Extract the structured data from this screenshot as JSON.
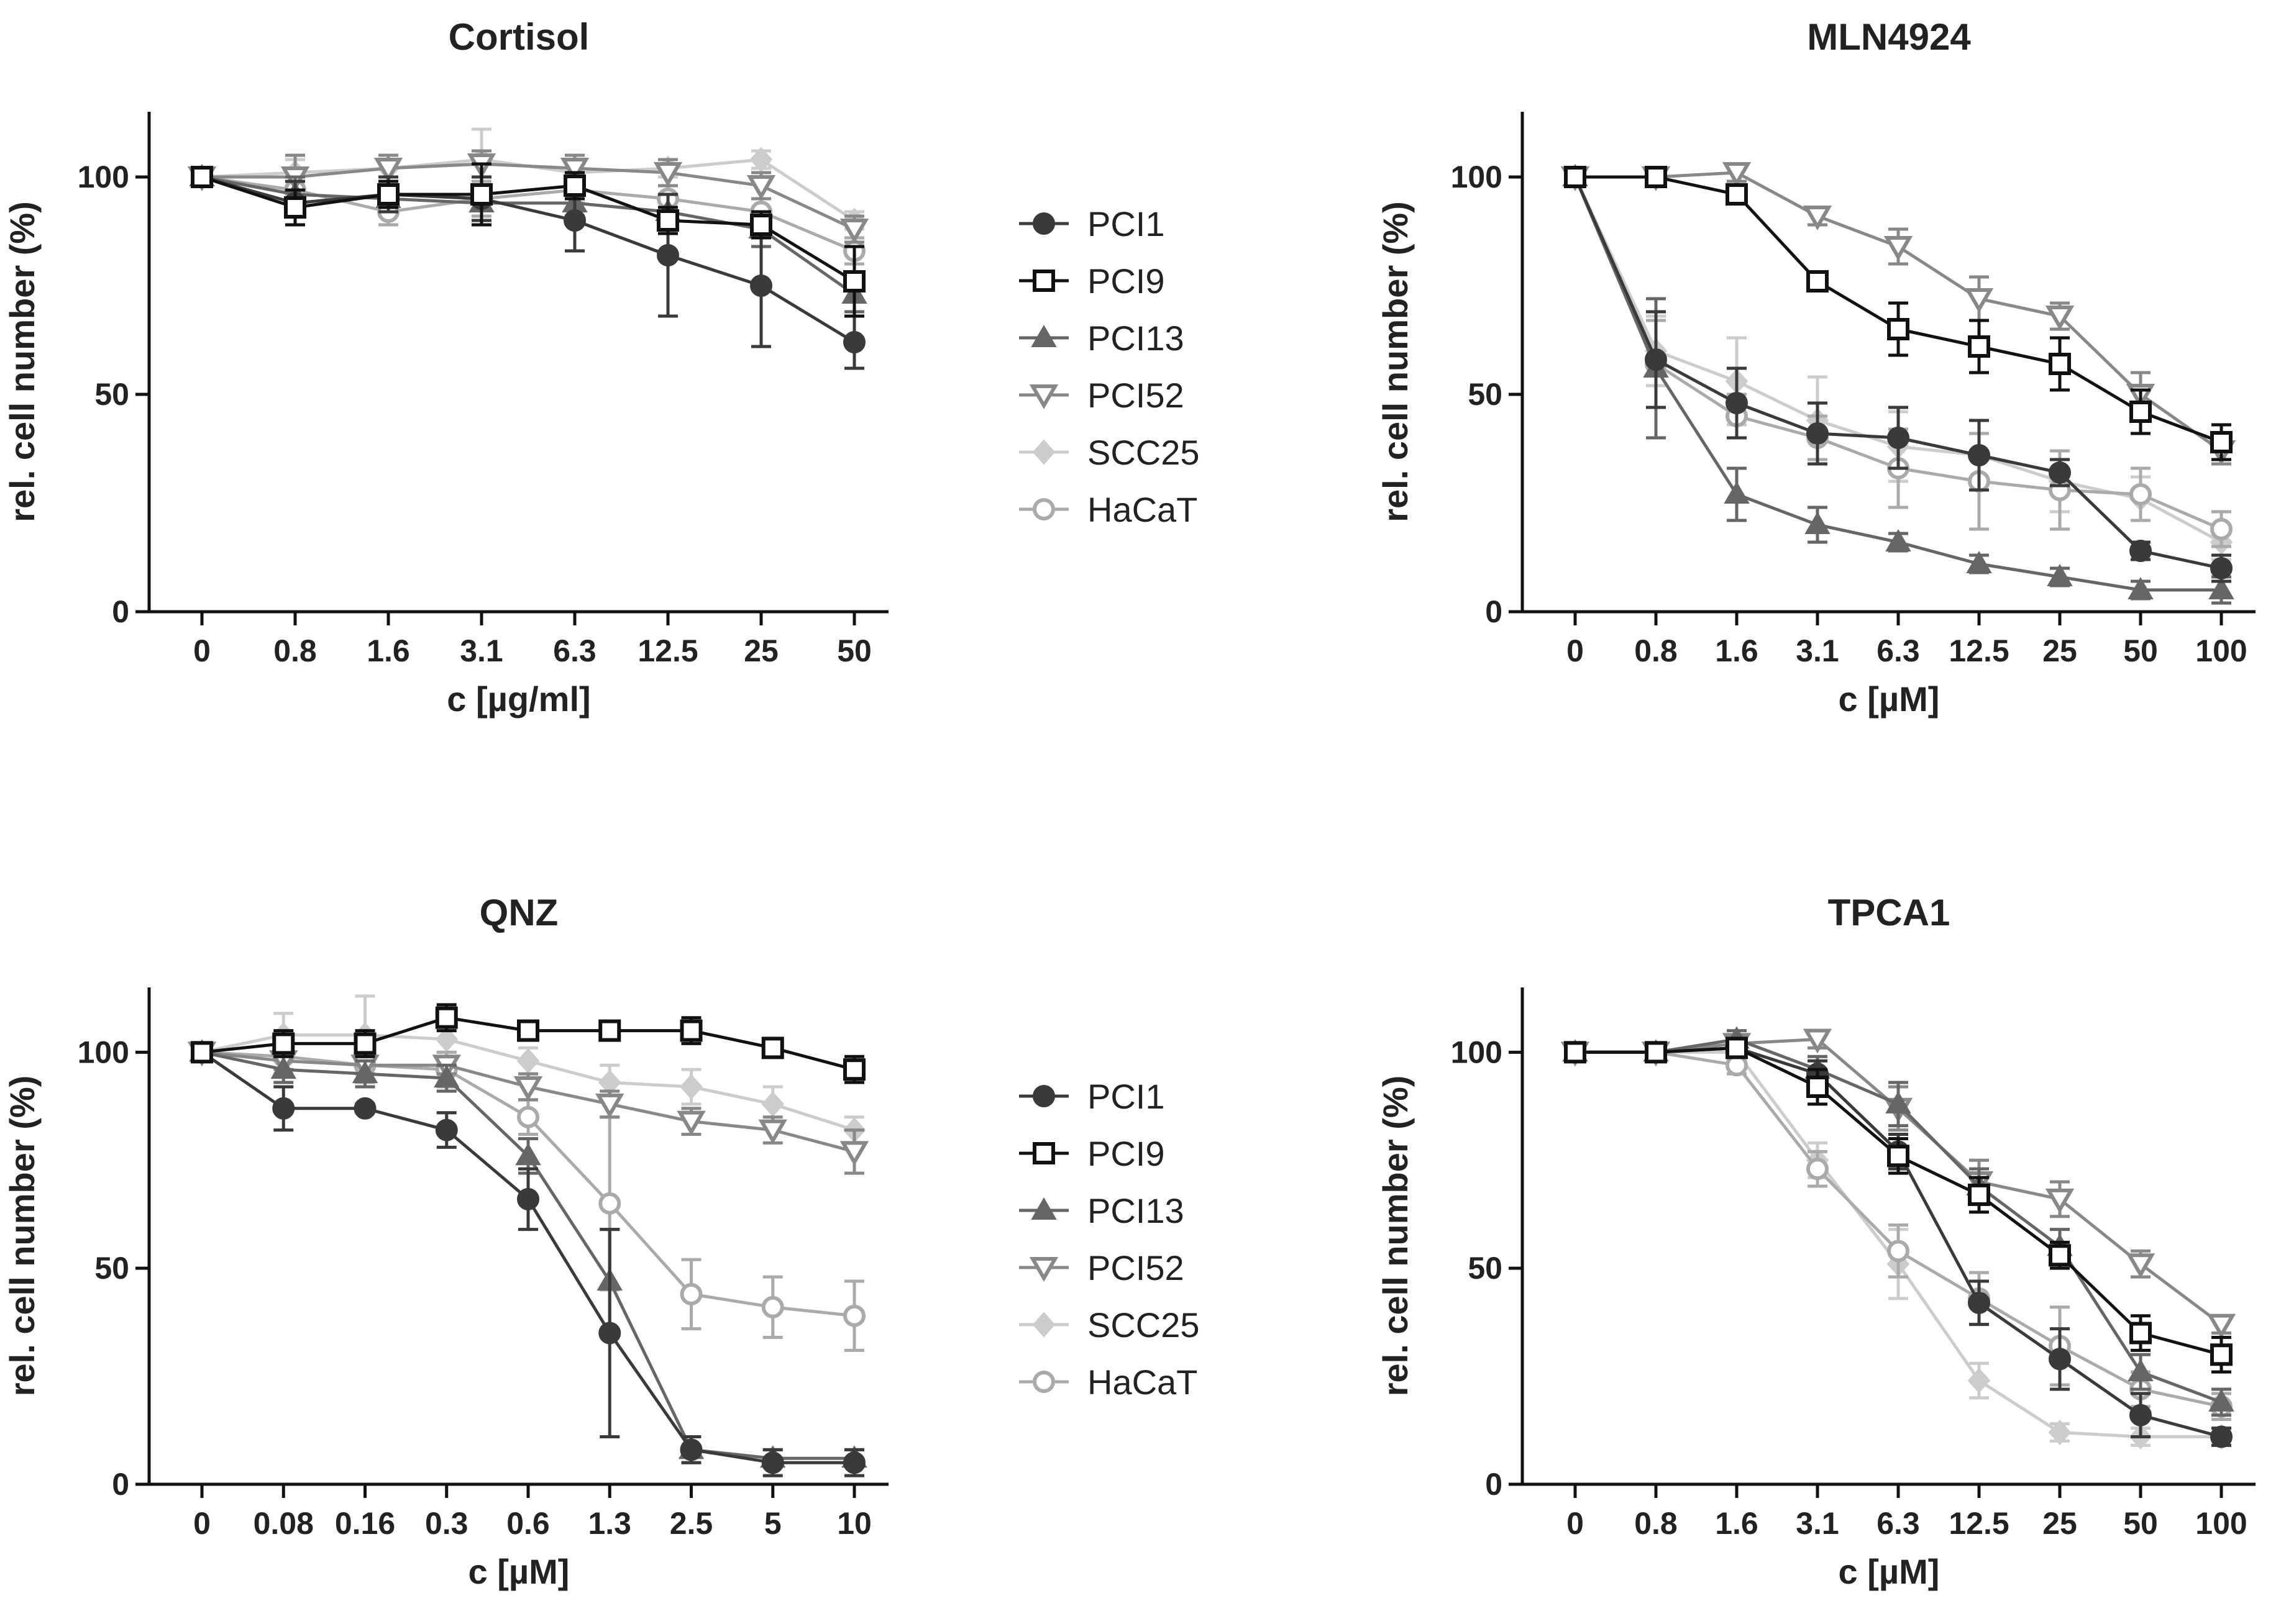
{
  "chart_data": [
    {
      "type": "line",
      "title": "Cortisol",
      "xlabel": "c [µg/ml]",
      "ylabel": "rel. cell number (%)",
      "ylim": [
        0,
        115
      ],
      "yticks": [
        0,
        50,
        100
      ],
      "categories": [
        "0",
        "0.8",
        "1.6",
        "3.1",
        "6.3",
        "12.5",
        "25",
        "50"
      ],
      "series": [
        {
          "name": "PCI1",
          "values": [
            100,
            94,
            96,
            95,
            90,
            82,
            75,
            62
          ],
          "errors": [
            1,
            5,
            4,
            5,
            7,
            14,
            14,
            6
          ]
        },
        {
          "name": "PCI9",
          "values": [
            100,
            93,
            96,
            96,
            98,
            90,
            89,
            76
          ],
          "errors": [
            1,
            4,
            3,
            7,
            3,
            3,
            3,
            8
          ]
        },
        {
          "name": "PCI13",
          "values": [
            100,
            96,
            95,
            94,
            94,
            92,
            88,
            73
          ],
          "errors": [
            1,
            4,
            3,
            4,
            3,
            4,
            4,
            4
          ]
        },
        {
          "name": "PCI52",
          "values": [
            100,
            100,
            102,
            103,
            102,
            101,
            98,
            88
          ],
          "errors": [
            1,
            5,
            3,
            3,
            3,
            3,
            3,
            3
          ]
        },
        {
          "name": "SCC25",
          "values": [
            100,
            101,
            102,
            104,
            101,
            102,
            104,
            90
          ],
          "errors": [
            1,
            3,
            3,
            7,
            3,
            2,
            2,
            2
          ]
        },
        {
          "name": "HaCaT",
          "values": [
            100,
            97,
            92,
            95,
            97,
            95,
            92,
            83
          ],
          "errors": [
            1,
            4,
            3,
            4,
            3,
            3,
            3,
            3
          ]
        }
      ]
    },
    {
      "type": "line",
      "title": "MLN4924",
      "xlabel": "c [µM]",
      "ylabel": "rel. cell number (%)",
      "ylim": [
        0,
        115
      ],
      "yticks": [
        0,
        50,
        100
      ],
      "categories": [
        "0",
        "0.8",
        "1.6",
        "3.1",
        "6.3",
        "12.5",
        "25",
        "50",
        "100"
      ],
      "series": [
        {
          "name": "PCI1",
          "values": [
            100,
            58,
            48,
            41,
            40,
            36,
            32,
            14,
            10
          ],
          "errors": [
            1,
            11,
            8,
            7,
            7,
            8,
            3,
            2,
            3
          ]
        },
        {
          "name": "PCI9",
          "values": [
            100,
            100,
            96,
            76,
            65,
            61,
            57,
            46,
            39
          ],
          "errors": [
            1,
            1,
            2,
            2,
            6,
            6,
            6,
            5,
            4
          ]
        },
        {
          "name": "PCI13",
          "values": [
            100,
            56,
            27,
            20,
            16,
            11,
            8,
            5,
            5
          ],
          "errors": [
            1,
            16,
            6,
            4,
            2,
            2,
            2,
            2,
            3
          ]
        },
        {
          "name": "PCI52",
          "values": [
            100,
            100,
            101,
            91,
            84,
            72,
            68,
            50,
            37
          ],
          "errors": [
            1,
            1,
            2,
            2,
            4,
            5,
            3,
            5,
            3
          ]
        },
        {
          "name": "SCC25",
          "values": [
            100,
            60,
            53,
            44,
            38,
            36,
            30,
            26,
            16
          ],
          "errors": [
            1,
            8,
            10,
            10,
            8,
            8,
            7,
            5,
            4
          ]
        },
        {
          "name": "HaCaT",
          "values": [
            100,
            57,
            45,
            40,
            33,
            30,
            28,
            27,
            19
          ],
          "errors": [
            1,
            10,
            5,
            5,
            9,
            11,
            9,
            6,
            4
          ]
        }
      ]
    },
    {
      "type": "line",
      "title": "QNZ",
      "xlabel": "c [µM]",
      "ylabel": "rel. cell number (%)",
      "ylim": [
        0,
        115
      ],
      "yticks": [
        0,
        50,
        100
      ],
      "categories": [
        "0",
        "0.08",
        "0.16",
        "0.3",
        "0.6",
        "1.3",
        "2.5",
        "5",
        "10"
      ],
      "series": [
        {
          "name": "PCI1",
          "values": [
            100,
            87,
            87,
            82,
            66,
            35,
            8,
            5,
            5
          ],
          "errors": [
            1,
            5,
            1,
            4,
            7,
            24,
            3,
            3,
            3
          ]
        },
        {
          "name": "PCI9",
          "values": [
            100,
            102,
            102,
            108,
            105,
            105,
            105,
            101,
            96
          ],
          "errors": [
            1,
            3,
            3,
            3,
            2,
            2,
            3,
            2,
            3
          ]
        },
        {
          "name": "PCI13",
          "values": [
            100,
            96,
            95,
            94,
            76,
            47,
            8,
            6,
            6
          ],
          "errors": [
            1,
            3,
            3,
            3,
            4,
            12,
            3,
            2,
            2
          ]
        },
        {
          "name": "PCI52",
          "values": [
            100,
            98,
            97,
            97,
            92,
            88,
            84,
            82,
            77
          ],
          "errors": [
            1,
            2,
            2,
            2,
            3,
            3,
            3,
            3,
            5
          ]
        },
        {
          "name": "SCC25",
          "values": [
            100,
            104,
            104,
            103,
            98,
            93,
            92,
            88,
            82
          ],
          "errors": [
            1,
            5,
            9,
            3,
            3,
            4,
            4,
            4,
            3
          ]
        },
        {
          "name": "HaCaT",
          "values": [
            100,
            99,
            97,
            96,
            85,
            65,
            44,
            41,
            39
          ],
          "errors": [
            1,
            4,
            4,
            4,
            4,
            20,
            8,
            7,
            8
          ]
        }
      ]
    },
    {
      "type": "line",
      "title": "TPCA1",
      "xlabel": "c [µM]",
      "ylabel": "rel. cell number (%)",
      "ylim": [
        0,
        115
      ],
      "yticks": [
        0,
        50,
        100
      ],
      "categories": [
        "0",
        "0.8",
        "1.6",
        "3.1",
        "6.3",
        "12.5",
        "25",
        "50",
        "100"
      ],
      "series": [
        {
          "name": "PCI1",
          "values": [
            100,
            100,
            101,
            95,
            77,
            42,
            29,
            16,
            11
          ],
          "errors": [
            1,
            2,
            2,
            3,
            4,
            5,
            7,
            5,
            2
          ]
        },
        {
          "name": "PCI9",
          "values": [
            100,
            100,
            101,
            92,
            76,
            67,
            53,
            35,
            30
          ],
          "errors": [
            1,
            2,
            2,
            4,
            4,
            4,
            3,
            4,
            4
          ]
        },
        {
          "name": "PCI13",
          "values": [
            100,
            100,
            103,
            96,
            88,
            69,
            55,
            26,
            19
          ],
          "errors": [
            1,
            2,
            2,
            3,
            5,
            4,
            4,
            4,
            3
          ]
        },
        {
          "name": "PCI52",
          "values": [
            100,
            100,
            102,
            103,
            87,
            70,
            66,
            51,
            37
          ],
          "errors": [
            1,
            2,
            2,
            2,
            5,
            5,
            4,
            3,
            2
          ]
        },
        {
          "name": "SCC25",
          "values": [
            100,
            100,
            100,
            75,
            51,
            24,
            12,
            11,
            11
          ],
          "errors": [
            1,
            2,
            2,
            4,
            8,
            4,
            2,
            2,
            2
          ]
        },
        {
          "name": "HaCaT",
          "values": [
            100,
            100,
            97,
            73,
            54,
            43,
            32,
            22,
            18
          ],
          "errors": [
            1,
            2,
            2,
            4,
            6,
            6,
            9,
            4,
            3
          ]
        }
      ]
    }
  ],
  "legends": [
    {
      "items": [
        "PCI1",
        "PCI9",
        "PCI13",
        "PCI52",
        "SCC25",
        "HaCaT"
      ]
    },
    {
      "items": [
        "PCI1",
        "PCI9",
        "PCI13",
        "PCI52",
        "SCC25",
        "HaCaT"
      ]
    }
  ],
  "series_styles": {
    "PCI1": {
      "color": "#3a3a3a",
      "marker": "filled-circle"
    },
    "PCI9": {
      "color": "#111111",
      "marker": "open-square"
    },
    "PCI13": {
      "color": "#666666",
      "marker": "filled-triangle-up"
    },
    "PCI52": {
      "color": "#888888",
      "marker": "open-triangle-down"
    },
    "SCC25": {
      "color": "#cccccc",
      "marker": "filled-diamond"
    },
    "HaCaT": {
      "color": "#aaaaaa",
      "marker": "open-circle"
    }
  }
}
